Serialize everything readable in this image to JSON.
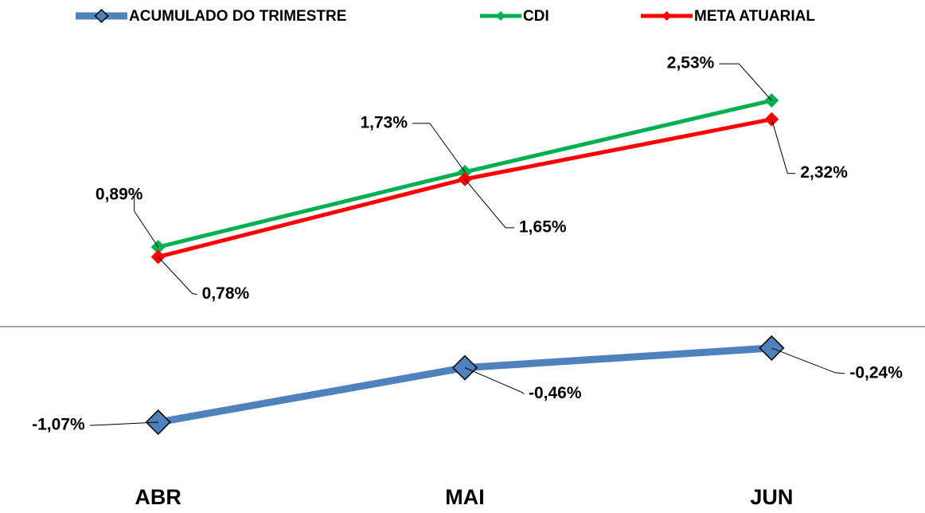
{
  "chart_data": {
    "type": "line",
    "categories": [
      "ABR",
      "MAI",
      "JUN"
    ],
    "series": [
      {
        "name": "ACUMULADO DO TRIMESTRE",
        "color": "#4f81bd",
        "values": [
          -1.07,
          -0.46,
          -0.24
        ],
        "value_labels": [
          "-1,07%",
          "-0,46%",
          "-0,24%"
        ]
      },
      {
        "name": "CDI",
        "color": "#00b050",
        "values": [
          0.89,
          1.73,
          2.53
        ],
        "value_labels": [
          "0,89%",
          "1,73%",
          "2,53%"
        ]
      },
      {
        "name": "META ATUARIAL",
        "color": "#ff0000",
        "values": [
          0.78,
          1.65,
          2.32
        ],
        "value_labels": [
          "0,78%",
          "1,65%",
          "2,32%"
        ]
      }
    ],
    "ylim": [
      -1.5,
      3.0
    ],
    "legend": "top"
  }
}
